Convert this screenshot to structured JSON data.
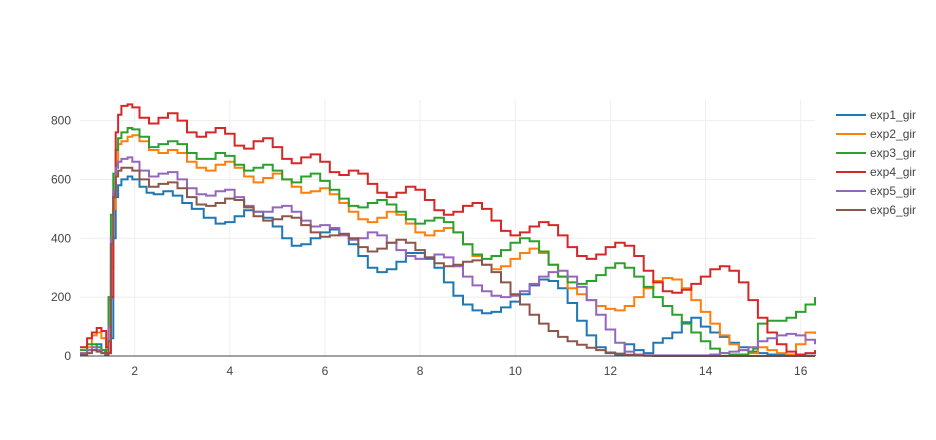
{
  "chart_data": {
    "type": "line",
    "line_shape": "step",
    "xlim": [
      0.85,
      16.3
    ],
    "ylim": [
      0,
      870
    ],
    "x_ticks": [
      2,
      4,
      6,
      8,
      10,
      12,
      14,
      16
    ],
    "y_ticks": [
      0,
      200,
      400,
      600,
      800
    ],
    "grid": true,
    "legend_position": "top-right",
    "series": [
      {
        "name": "exp1_gir",
        "color": "#1f77b4",
        "x": [
          0.85,
          1.0,
          1.2,
          1.3,
          1.38,
          1.45,
          1.5,
          1.55,
          1.6,
          1.65,
          1.72,
          1.85,
          1.95,
          2.1,
          2.25,
          2.4,
          2.6,
          2.8,
          3.0,
          3.2,
          3.45,
          3.7,
          3.9,
          4.1,
          4.3,
          4.5,
          4.7,
          4.9,
          5.1,
          5.3,
          5.5,
          5.7,
          5.9,
          6.1,
          6.3,
          6.5,
          6.7,
          6.9,
          7.1,
          7.3,
          7.5,
          7.7,
          7.9,
          8.1,
          8.3,
          8.5,
          8.7,
          8.9,
          9.1,
          9.3,
          9.5,
          9.7,
          9.9,
          10.1,
          10.3,
          10.5,
          10.7,
          10.9,
          11.1,
          11.3,
          11.5,
          11.7,
          11.9,
          12.1,
          12.3,
          12.5,
          12.7,
          12.9,
          13.1,
          13.3,
          13.5,
          13.7,
          13.9,
          14.1,
          14.3,
          14.5,
          14.7,
          14.9,
          15.1,
          15.3,
          15.5,
          15.7,
          15.9,
          16.1,
          16.3
        ],
        "y": [
          5,
          20,
          40,
          20,
          5,
          190,
          60,
          400,
          540,
          580,
          600,
          610,
          600,
          575,
          555,
          550,
          560,
          545,
          520,
          500,
          470,
          450,
          455,
          475,
          495,
          490,
          470,
          440,
          400,
          375,
          380,
          400,
          420,
          430,
          415,
          380,
          340,
          300,
          285,
          295,
          320,
          350,
          350,
          330,
          300,
          250,
          205,
          175,
          155,
          145,
          150,
          165,
          185,
          210,
          240,
          260,
          255,
          230,
          180,
          120,
          70,
          30,
          10,
          5,
          40,
          20,
          10,
          45,
          60,
          80,
          115,
          130,
          100,
          80,
          65,
          45,
          30,
          15,
          10,
          5,
          5,
          5,
          2,
          1,
          0
        ]
      },
      {
        "name": "exp2_gir",
        "color": "#ff7f0e",
        "x": [
          0.85,
          1.0,
          1.1,
          1.2,
          1.3,
          1.4,
          1.45,
          1.5,
          1.55,
          1.6,
          1.65,
          1.72,
          1.85,
          1.95,
          2.1,
          2.3,
          2.5,
          2.7,
          2.9,
          3.1,
          3.3,
          3.5,
          3.7,
          3.9,
          4.1,
          4.3,
          4.5,
          4.7,
          4.9,
          5.1,
          5.3,
          5.5,
          5.7,
          5.9,
          6.1,
          6.3,
          6.5,
          6.7,
          6.9,
          7.1,
          7.3,
          7.5,
          7.7,
          7.9,
          8.1,
          8.3,
          8.5,
          8.7,
          8.9,
          9.1,
          9.3,
          9.5,
          9.7,
          9.9,
          10.1,
          10.3,
          10.5,
          10.7,
          10.9,
          11.1,
          11.3,
          11.5,
          11.7,
          11.9,
          12.1,
          12.3,
          12.5,
          12.7,
          12.9,
          13.1,
          13.3,
          13.5,
          13.7,
          13.9,
          14.1,
          14.3,
          14.5,
          14.7,
          14.9,
          15.1,
          15.3,
          15.5,
          15.7,
          15.9,
          16.1,
          16.3
        ],
        "y": [
          10,
          30,
          70,
          80,
          60,
          20,
          10,
          300,
          500,
          650,
          720,
          730,
          745,
          750,
          730,
          700,
          690,
          700,
          690,
          660,
          640,
          630,
          650,
          660,
          640,
          610,
          590,
          605,
          620,
          600,
          575,
          555,
          560,
          570,
          550,
          520,
          490,
          465,
          455,
          470,
          490,
          480,
          450,
          420,
          410,
          425,
          435,
          420,
          380,
          340,
          310,
          295,
          305,
          330,
          350,
          365,
          350,
          310,
          270,
          230,
          210,
          190,
          170,
          160,
          155,
          170,
          200,
          230,
          255,
          265,
          260,
          230,
          190,
          150,
          110,
          70,
          40,
          20,
          10,
          30,
          20,
          10,
          5,
          40,
          80,
          75
        ]
      },
      {
        "name": "exp3_gir",
        "color": "#2ca02c",
        "x": [
          0.85,
          1.0,
          1.1,
          1.2,
          1.3,
          1.4,
          1.45,
          1.5,
          1.55,
          1.6,
          1.65,
          1.72,
          1.85,
          1.95,
          2.1,
          2.3,
          2.5,
          2.7,
          2.9,
          3.1,
          3.3,
          3.5,
          3.7,
          3.9,
          4.1,
          4.3,
          4.5,
          4.7,
          4.9,
          5.1,
          5.3,
          5.5,
          5.7,
          5.9,
          6.1,
          6.3,
          6.5,
          6.7,
          6.9,
          7.1,
          7.3,
          7.5,
          7.7,
          7.9,
          8.1,
          8.3,
          8.5,
          8.7,
          8.9,
          9.1,
          9.3,
          9.5,
          9.7,
          9.9,
          10.1,
          10.3,
          10.5,
          10.7,
          10.9,
          11.1,
          11.3,
          11.5,
          11.7,
          11.9,
          12.1,
          12.3,
          12.5,
          12.7,
          12.9,
          13.1,
          13.3,
          13.5,
          13.7,
          13.9,
          14.1,
          14.3,
          14.5,
          14.7,
          14.9,
          15.0,
          15.1,
          15.3,
          15.5,
          15.7,
          15.9,
          16.1,
          16.3
        ],
        "y": [
          20,
          40,
          40,
          30,
          20,
          10,
          200,
          480,
          620,
          700,
          740,
          760,
          775,
          770,
          745,
          710,
          720,
          730,
          720,
          690,
          670,
          670,
          690,
          680,
          650,
          630,
          640,
          650,
          630,
          600,
          590,
          610,
          620,
          595,
          565,
          535,
          510,
          505,
          520,
          530,
          515,
          490,
          465,
          450,
          460,
          470,
          455,
          420,
          380,
          345,
          330,
          340,
          360,
          385,
          400,
          390,
          355,
          310,
          270,
          250,
          245,
          255,
          275,
          300,
          315,
          300,
          270,
          235,
          200,
          170,
          140,
          110,
          80,
          50,
          25,
          10,
          5,
          5,
          15,
          25,
          110,
          120,
          120,
          130,
          150,
          175,
          200
        ]
      },
      {
        "name": "exp4_gir",
        "color": "#d62728",
        "x": [
          0.85,
          1.0,
          1.1,
          1.2,
          1.3,
          1.4,
          1.45,
          1.5,
          1.55,
          1.6,
          1.65,
          1.72,
          1.85,
          1.95,
          2.1,
          2.3,
          2.5,
          2.7,
          2.9,
          3.1,
          3.3,
          3.5,
          3.7,
          3.9,
          4.1,
          4.3,
          4.5,
          4.7,
          4.9,
          5.1,
          5.3,
          5.5,
          5.7,
          5.9,
          6.1,
          6.3,
          6.5,
          6.7,
          6.9,
          7.1,
          7.3,
          7.5,
          7.7,
          7.9,
          8.1,
          8.3,
          8.5,
          8.7,
          8.9,
          9.1,
          9.3,
          9.5,
          9.7,
          9.9,
          10.1,
          10.3,
          10.5,
          10.7,
          10.9,
          11.1,
          11.3,
          11.5,
          11.7,
          11.9,
          12.1,
          12.3,
          12.5,
          12.7,
          12.9,
          13.1,
          13.3,
          13.5,
          13.7,
          13.9,
          14.1,
          14.3,
          14.5,
          14.7,
          14.9,
          15.1,
          15.3,
          15.5,
          15.7,
          15.9,
          16.1,
          16.3
        ],
        "y": [
          30,
          60,
          80,
          95,
          85,
          30,
          10,
          200,
          550,
          760,
          820,
          850,
          855,
          845,
          810,
          790,
          810,
          825,
          800,
          760,
          745,
          760,
          775,
          755,
          715,
          705,
          730,
          740,
          710,
          670,
          655,
          675,
          685,
          660,
          625,
          615,
          630,
          620,
          585,
          555,
          540,
          555,
          575,
          565,
          530,
          495,
          480,
          490,
          510,
          520,
          500,
          460,
          425,
          410,
          420,
          440,
          455,
          445,
          410,
          370,
          340,
          330,
          345,
          370,
          385,
          375,
          340,
          290,
          250,
          220,
          215,
          225,
          245,
          270,
          295,
          305,
          290,
          250,
          190,
          130,
          80,
          40,
          15,
          5,
          10,
          20
        ]
      },
      {
        "name": "exp5_gir",
        "color": "#9467bd",
        "x": [
          0.85,
          1.0,
          1.1,
          1.2,
          1.3,
          1.4,
          1.45,
          1.5,
          1.55,
          1.6,
          1.65,
          1.72,
          1.85,
          1.95,
          2.1,
          2.3,
          2.5,
          2.7,
          2.9,
          3.1,
          3.3,
          3.5,
          3.7,
          3.9,
          4.1,
          4.3,
          4.5,
          4.7,
          4.9,
          5.1,
          5.3,
          5.5,
          5.7,
          5.9,
          6.1,
          6.3,
          6.5,
          6.7,
          6.9,
          7.1,
          7.3,
          7.5,
          7.7,
          7.9,
          8.1,
          8.3,
          8.5,
          8.7,
          8.9,
          9.1,
          9.3,
          9.5,
          9.7,
          9.9,
          10.1,
          10.3,
          10.5,
          10.7,
          10.9,
          11.1,
          11.3,
          11.5,
          11.7,
          11.9,
          12.1,
          12.3,
          12.5,
          12.7,
          12.9,
          13.1,
          13.3,
          13.5,
          13.7,
          13.9,
          14.1,
          14.3,
          14.5,
          14.7,
          14.9,
          15.1,
          15.3,
          15.5,
          15.7,
          15.9,
          16.1,
          16.3
        ],
        "y": [
          10,
          20,
          30,
          20,
          10,
          5,
          100,
          400,
          560,
          640,
          660,
          670,
          675,
          660,
          630,
          610,
          620,
          625,
          600,
          570,
          550,
          545,
          560,
          565,
          540,
          510,
          490,
          490,
          505,
          510,
          490,
          460,
          440,
          445,
          435,
          410,
          395,
          400,
          420,
          410,
          385,
          360,
          340,
          330,
          335,
          345,
          335,
          305,
          270,
          240,
          220,
          205,
          200,
          205,
          220,
          245,
          270,
          285,
          290,
          270,
          235,
          190,
          140,
          90,
          45,
          15,
          5,
          2,
          2,
          2,
          2,
          2,
          2,
          2,
          5,
          10,
          15,
          20,
          30,
          50,
          60,
          70,
          75,
          70,
          55,
          40
        ]
      },
      {
        "name": "exp6_gir",
        "color": "#8c564b",
        "x": [
          0.85,
          1.0,
          1.1,
          1.2,
          1.3,
          1.4,
          1.45,
          1.5,
          1.55,
          1.6,
          1.65,
          1.72,
          1.85,
          1.95,
          2.1,
          2.3,
          2.5,
          2.7,
          2.9,
          3.1,
          3.3,
          3.5,
          3.7,
          3.9,
          4.1,
          4.3,
          4.5,
          4.7,
          4.9,
          5.1,
          5.3,
          5.5,
          5.7,
          5.9,
          6.1,
          6.3,
          6.5,
          6.7,
          6.9,
          7.1,
          7.3,
          7.5,
          7.7,
          7.9,
          8.1,
          8.3,
          8.5,
          8.7,
          8.9,
          9.1,
          9.3,
          9.5,
          9.7,
          9.9,
          10.1,
          10.3,
          10.5,
          10.7,
          10.9,
          11.1,
          11.3,
          11.5,
          11.7,
          11.9,
          12.1,
          12.3,
          12.5,
          12.7,
          12.9,
          13.1,
          13.3,
          13.5,
          13.7,
          13.9,
          14.1,
          14.3,
          14.5,
          14.7,
          14.9,
          15.1,
          15.3,
          15.5,
          15.7,
          15.9,
          16.1,
          16.3
        ],
        "y": [
          5,
          10,
          20,
          15,
          10,
          5,
          50,
          380,
          540,
          610,
          630,
          640,
          640,
          630,
          600,
          575,
          585,
          590,
          570,
          540,
          515,
          510,
          520,
          535,
          530,
          505,
          475,
          460,
          465,
          475,
          470,
          445,
          420,
          405,
          410,
          415,
          400,
          370,
          355,
          365,
          385,
          395,
          385,
          360,
          335,
          315,
          305,
          310,
          320,
          325,
          310,
          285,
          250,
          210,
          175,
          140,
          110,
          85,
          65,
          50,
          38,
          28,
          20,
          12,
          8,
          4,
          2,
          1,
          0,
          0,
          0,
          0,
          0,
          0,
          0,
          0,
          0,
          0,
          0,
          0,
          0,
          0,
          0,
          0,
          0,
          0
        ]
      }
    ]
  }
}
